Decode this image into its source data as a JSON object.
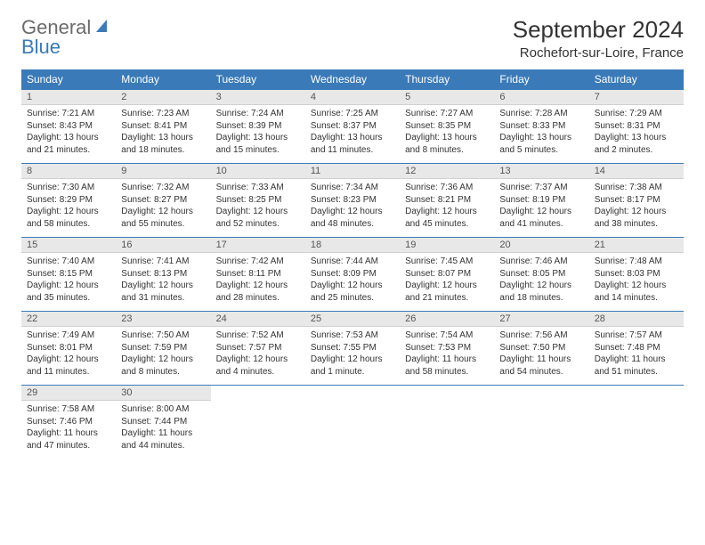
{
  "logo": {
    "general": "General",
    "blue": "Blue"
  },
  "title": "September 2024",
  "location": "Rochefort-sur-Loire, France",
  "colors": {
    "header_bg": "#3a7ab8",
    "header_text": "#ffffff",
    "daynum_bg": "#e8e8e8",
    "border": "#3a7ab8",
    "body_text": "#333333",
    "logo_gray": "#6b6b6b",
    "logo_blue": "#3a7ab8"
  },
  "weekdays": [
    "Sunday",
    "Monday",
    "Tuesday",
    "Wednesday",
    "Thursday",
    "Friday",
    "Saturday"
  ],
  "days": [
    {
      "n": "1",
      "sr": "Sunrise: 7:21 AM",
      "ss": "Sunset: 8:43 PM",
      "dl": "Daylight: 13 hours and 21 minutes."
    },
    {
      "n": "2",
      "sr": "Sunrise: 7:23 AM",
      "ss": "Sunset: 8:41 PM",
      "dl": "Daylight: 13 hours and 18 minutes."
    },
    {
      "n": "3",
      "sr": "Sunrise: 7:24 AM",
      "ss": "Sunset: 8:39 PM",
      "dl": "Daylight: 13 hours and 15 minutes."
    },
    {
      "n": "4",
      "sr": "Sunrise: 7:25 AM",
      "ss": "Sunset: 8:37 PM",
      "dl": "Daylight: 13 hours and 11 minutes."
    },
    {
      "n": "5",
      "sr": "Sunrise: 7:27 AM",
      "ss": "Sunset: 8:35 PM",
      "dl": "Daylight: 13 hours and 8 minutes."
    },
    {
      "n": "6",
      "sr": "Sunrise: 7:28 AM",
      "ss": "Sunset: 8:33 PM",
      "dl": "Daylight: 13 hours and 5 minutes."
    },
    {
      "n": "7",
      "sr": "Sunrise: 7:29 AM",
      "ss": "Sunset: 8:31 PM",
      "dl": "Daylight: 13 hours and 2 minutes."
    },
    {
      "n": "8",
      "sr": "Sunrise: 7:30 AM",
      "ss": "Sunset: 8:29 PM",
      "dl": "Daylight: 12 hours and 58 minutes."
    },
    {
      "n": "9",
      "sr": "Sunrise: 7:32 AM",
      "ss": "Sunset: 8:27 PM",
      "dl": "Daylight: 12 hours and 55 minutes."
    },
    {
      "n": "10",
      "sr": "Sunrise: 7:33 AM",
      "ss": "Sunset: 8:25 PM",
      "dl": "Daylight: 12 hours and 52 minutes."
    },
    {
      "n": "11",
      "sr": "Sunrise: 7:34 AM",
      "ss": "Sunset: 8:23 PM",
      "dl": "Daylight: 12 hours and 48 minutes."
    },
    {
      "n": "12",
      "sr": "Sunrise: 7:36 AM",
      "ss": "Sunset: 8:21 PM",
      "dl": "Daylight: 12 hours and 45 minutes."
    },
    {
      "n": "13",
      "sr": "Sunrise: 7:37 AM",
      "ss": "Sunset: 8:19 PM",
      "dl": "Daylight: 12 hours and 41 minutes."
    },
    {
      "n": "14",
      "sr": "Sunrise: 7:38 AM",
      "ss": "Sunset: 8:17 PM",
      "dl": "Daylight: 12 hours and 38 minutes."
    },
    {
      "n": "15",
      "sr": "Sunrise: 7:40 AM",
      "ss": "Sunset: 8:15 PM",
      "dl": "Daylight: 12 hours and 35 minutes."
    },
    {
      "n": "16",
      "sr": "Sunrise: 7:41 AM",
      "ss": "Sunset: 8:13 PM",
      "dl": "Daylight: 12 hours and 31 minutes."
    },
    {
      "n": "17",
      "sr": "Sunrise: 7:42 AM",
      "ss": "Sunset: 8:11 PM",
      "dl": "Daylight: 12 hours and 28 minutes."
    },
    {
      "n": "18",
      "sr": "Sunrise: 7:44 AM",
      "ss": "Sunset: 8:09 PM",
      "dl": "Daylight: 12 hours and 25 minutes."
    },
    {
      "n": "19",
      "sr": "Sunrise: 7:45 AM",
      "ss": "Sunset: 8:07 PM",
      "dl": "Daylight: 12 hours and 21 minutes."
    },
    {
      "n": "20",
      "sr": "Sunrise: 7:46 AM",
      "ss": "Sunset: 8:05 PM",
      "dl": "Daylight: 12 hours and 18 minutes."
    },
    {
      "n": "21",
      "sr": "Sunrise: 7:48 AM",
      "ss": "Sunset: 8:03 PM",
      "dl": "Daylight: 12 hours and 14 minutes."
    },
    {
      "n": "22",
      "sr": "Sunrise: 7:49 AM",
      "ss": "Sunset: 8:01 PM",
      "dl": "Daylight: 12 hours and 11 minutes."
    },
    {
      "n": "23",
      "sr": "Sunrise: 7:50 AM",
      "ss": "Sunset: 7:59 PM",
      "dl": "Daylight: 12 hours and 8 minutes."
    },
    {
      "n": "24",
      "sr": "Sunrise: 7:52 AM",
      "ss": "Sunset: 7:57 PM",
      "dl": "Daylight: 12 hours and 4 minutes."
    },
    {
      "n": "25",
      "sr": "Sunrise: 7:53 AM",
      "ss": "Sunset: 7:55 PM",
      "dl": "Daylight: 12 hours and 1 minute."
    },
    {
      "n": "26",
      "sr": "Sunrise: 7:54 AM",
      "ss": "Sunset: 7:53 PM",
      "dl": "Daylight: 11 hours and 58 minutes."
    },
    {
      "n": "27",
      "sr": "Sunrise: 7:56 AM",
      "ss": "Sunset: 7:50 PM",
      "dl": "Daylight: 11 hours and 54 minutes."
    },
    {
      "n": "28",
      "sr": "Sunrise: 7:57 AM",
      "ss": "Sunset: 7:48 PM",
      "dl": "Daylight: 11 hours and 51 minutes."
    },
    {
      "n": "29",
      "sr": "Sunrise: 7:58 AM",
      "ss": "Sunset: 7:46 PM",
      "dl": "Daylight: 11 hours and 47 minutes."
    },
    {
      "n": "30",
      "sr": "Sunrise: 8:00 AM",
      "ss": "Sunset: 7:44 PM",
      "dl": "Daylight: 11 hours and 44 minutes."
    }
  ]
}
